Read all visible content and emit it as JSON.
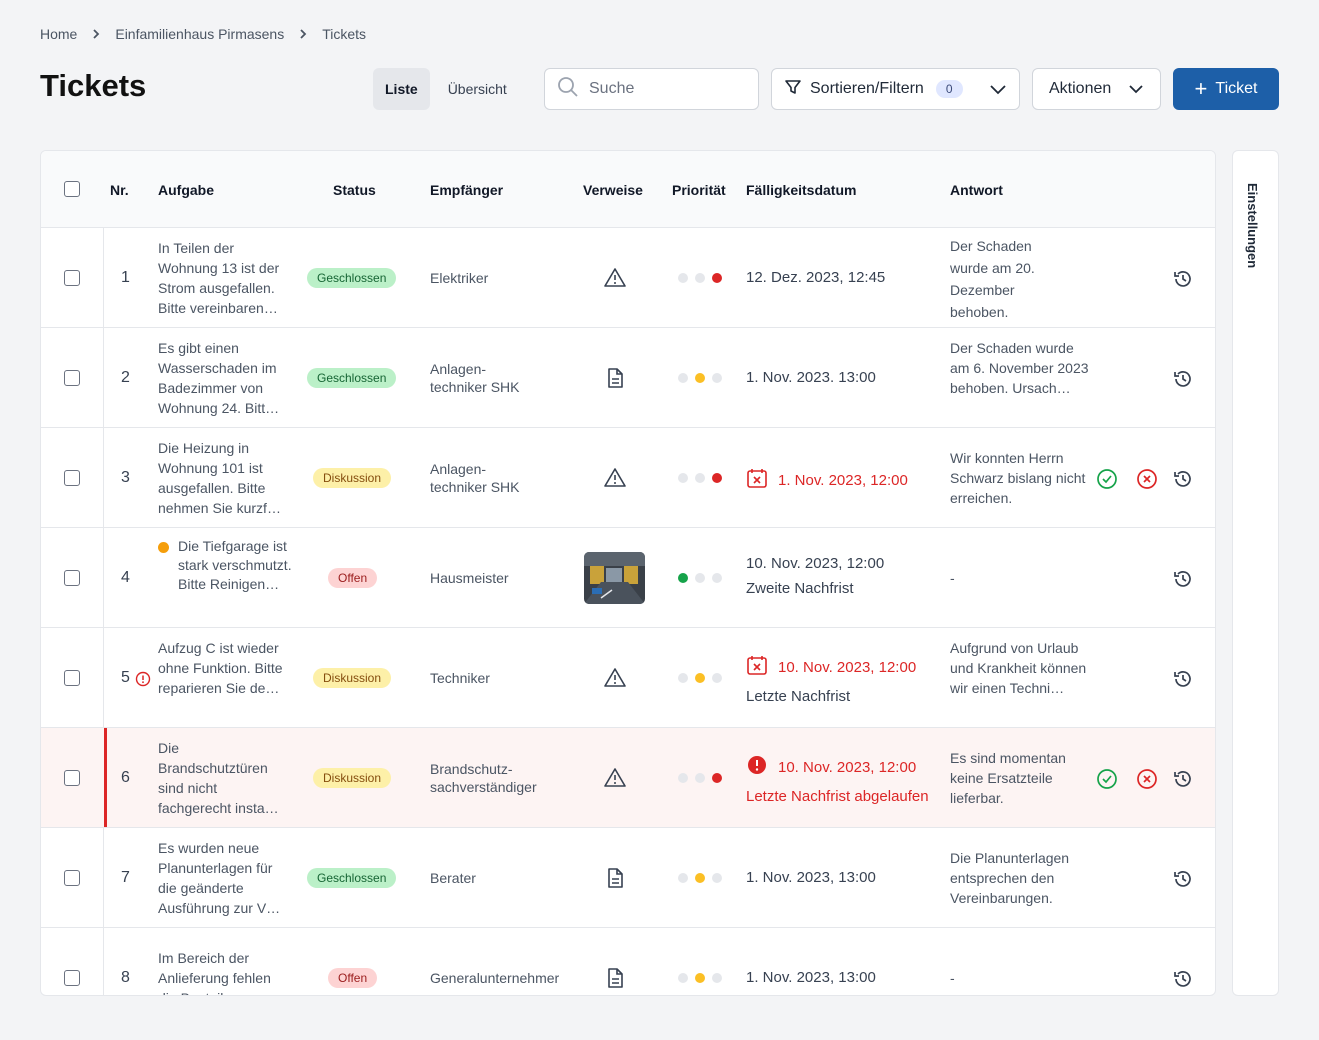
{
  "breadcrumb": {
    "home": "Home",
    "project": "Einfamilienhaus Pirmasens",
    "current": "Tickets"
  },
  "page_title": "Tickets",
  "view": {
    "list": "Liste",
    "overview": "Übersicht"
  },
  "search": {
    "placeholder": "Suche"
  },
  "filter": {
    "label": "Sortieren/Filtern",
    "count": "0"
  },
  "actions": {
    "label": "Aktionen"
  },
  "new_ticket": {
    "label": "Ticket"
  },
  "settings": {
    "label": "Einstellungen"
  },
  "columns": {
    "nr": "Nr.",
    "task": "Aufgabe",
    "status": "Status",
    "recipient": "Empfänger",
    "refs": "Verweise",
    "priority": "Priorität",
    "due": "Fälligkeitsdatum",
    "answer": "Antwort"
  },
  "rows": [
    {
      "nr": "1",
      "task": "In Teilen der Wohnung 13 ist der Strom ausgefallen. Bitte vereinbaren…",
      "status": "Geschlossen",
      "recipient": "Elektriker",
      "due": "12. Dez. 2023, 12:45",
      "answer": "Der Schaden wurde am 20. Dezember behoben.",
      "priority": "high"
    },
    {
      "nr": "2",
      "task": "Es gibt einen Wasserschaden im Badezimmer von Wohnung 24. Bitt…",
      "status": "Geschlossen",
      "recipient": "Anlagen-techniker SHK",
      "due": "1. Nov. 2023. 13:00",
      "answer": "Der Schaden wurde am 6. November 2023 behoben. Ursach…",
      "priority": "medium"
    },
    {
      "nr": "3",
      "task": "Die Heizung in Wohnung 101 ist ausgefallen. Bitte nehmen Sie kurzf…",
      "status": "Diskussion",
      "recipient": "Anlagen-techniker SHK",
      "due": "1. Nov. 2023, 12:00",
      "answer": "Wir konnten Herrn Schwarz bislang nicht erreichen.",
      "priority": "high"
    },
    {
      "nr": "4",
      "task": "Die Tiefgarage ist stark verschmutzt. Bitte Reinigen…",
      "status": "Offen",
      "recipient": "Hausmeister",
      "due": "10. Nov. 2023, 12:00",
      "due2": "Zweite Nachfrist",
      "answer": "-",
      "priority": "low"
    },
    {
      "nr": "5",
      "task": "Aufzug C ist wieder ohne Funktion. Bitte reparieren Sie de…",
      "status": "Diskussion",
      "recipient": "Techniker",
      "due": "10. Nov. 2023, 12:00",
      "due2": "Letzte Nachfrist",
      "answer": "Aufgrund von Urlaub und Krankheit können wir einen Techni…",
      "priority": "medium"
    },
    {
      "nr": "6",
      "task": "Die Brandschutztüren sind nicht fachgerecht insta…",
      "status": "Diskussion",
      "recipient": "Brandschutz-sachverständiger",
      "due": "10. Nov. 2023, 12:00",
      "due2": "Letzte Nachfrist abgelaufen",
      "answer": "Es sind momentan keine Ersatzteile lieferbar.",
      "priority": "high"
    },
    {
      "nr": "7",
      "task": "Es wurden neue Planunterlagen für die geänderte Ausführung zur V…",
      "status": "Geschlossen",
      "recipient": "Berater",
      "due": "1. Nov. 2023, 13:00",
      "answer": "Die Planunterlagen entsprechen den Vereinbarungen.",
      "priority": "medium"
    },
    {
      "nr": "8",
      "task": "Im Bereich der Anlieferung fehlen die Bauteil…",
      "status": "Offen",
      "recipient": "Generalunternehmer",
      "due": "1. Nov. 2023, 13:00",
      "answer": "-",
      "priority": "medium"
    }
  ]
}
